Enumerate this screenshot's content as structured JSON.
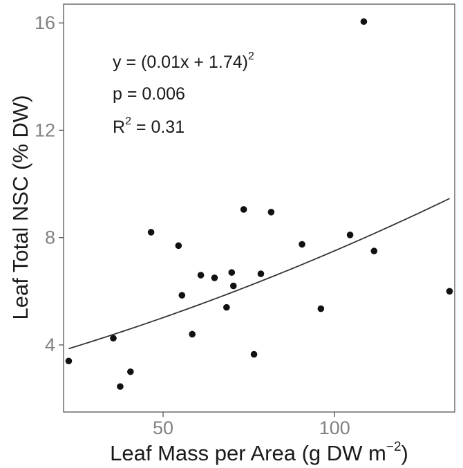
{
  "chart_data": {
    "type": "scatter",
    "xlabel": "Leaf Mass per Area (g DW m",
    "xlabel_sup": "−2",
    "xlabel_close": ")",
    "ylabel": "Leaf Total NSC (% DW)",
    "xlim": [
      21,
      135
    ],
    "ylim": [
      1.5,
      16.7
    ],
    "xticks": [
      50,
      100
    ],
    "yticks": [
      4,
      8,
      12,
      16
    ],
    "grid": false,
    "points": [
      {
        "x": 22.5,
        "y": 3.4
      },
      {
        "x": 35.5,
        "y": 4.25
      },
      {
        "x": 37.5,
        "y": 2.45
      },
      {
        "x": 40.5,
        "y": 3.0
      },
      {
        "x": 46.5,
        "y": 8.2
      },
      {
        "x": 54.5,
        "y": 7.7
      },
      {
        "x": 55.5,
        "y": 5.85
      },
      {
        "x": 58.5,
        "y": 4.4
      },
      {
        "x": 61.0,
        "y": 6.6
      },
      {
        "x": 65.0,
        "y": 6.5
      },
      {
        "x": 68.5,
        "y": 5.4
      },
      {
        "x": 70.0,
        "y": 6.7
      },
      {
        "x": 70.5,
        "y": 6.2
      },
      {
        "x": 73.5,
        "y": 9.05
      },
      {
        "x": 76.5,
        "y": 3.65
      },
      {
        "x": 78.5,
        "y": 6.65
      },
      {
        "x": 81.5,
        "y": 8.95
      },
      {
        "x": 90.5,
        "y": 7.75
      },
      {
        "x": 96.0,
        "y": 5.35
      },
      {
        "x": 104.5,
        "y": 8.1
      },
      {
        "x": 108.5,
        "y": 16.05
      },
      {
        "x": 111.5,
        "y": 7.5
      },
      {
        "x": 133.5,
        "y": 6.0
      }
    ],
    "fit": {
      "equation_prefix": "y = (0.01x + 1.74)",
      "equation_sup": "2",
      "p_text": "p = 0.006",
      "r2_label": "R",
      "r2_sup": "2",
      "r2_value": " = 0.31",
      "coef_a": 0.01,
      "coef_b": 1.74,
      "x_start": 22.5,
      "x_end": 133.5
    }
  }
}
